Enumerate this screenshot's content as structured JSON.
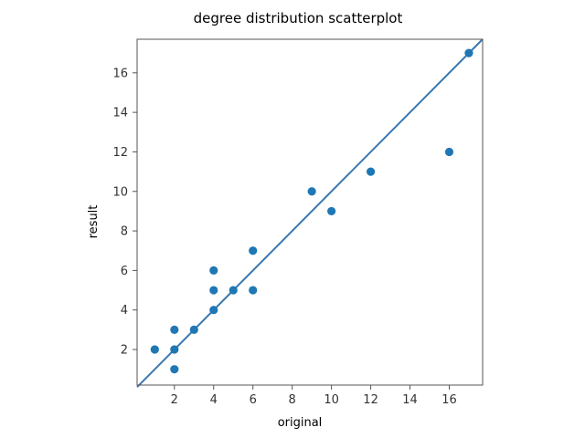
{
  "chart_data": {
    "type": "scatter",
    "title": "degree distribution scatterplot",
    "xlabel": "original",
    "ylabel": "result",
    "xlim": [
      0.1,
      17.7
    ],
    "ylim": [
      0.2,
      17.7
    ],
    "xticks": [
      2,
      4,
      6,
      8,
      10,
      12,
      14,
      16
    ],
    "yticks": [
      2,
      4,
      6,
      8,
      10,
      12,
      14,
      16
    ],
    "grid": false,
    "points": [
      {
        "x": 1,
        "y": 2
      },
      {
        "x": 2,
        "y": 1
      },
      {
        "x": 2,
        "y": 2
      },
      {
        "x": 2,
        "y": 3
      },
      {
        "x": 3,
        "y": 3
      },
      {
        "x": 4,
        "y": 4
      },
      {
        "x": 4,
        "y": 5
      },
      {
        "x": 4,
        "y": 6
      },
      {
        "x": 5,
        "y": 5
      },
      {
        "x": 6,
        "y": 5
      },
      {
        "x": 6,
        "y": 7
      },
      {
        "x": 9,
        "y": 10
      },
      {
        "x": 10,
        "y": 9
      },
      {
        "x": 12,
        "y": 11
      },
      {
        "x": 16,
        "y": 12
      },
      {
        "x": 17,
        "y": 17
      }
    ],
    "reference_line": {
      "type": "identity",
      "from": [
        0.1,
        0.1
      ],
      "to": [
        17.7,
        17.7
      ]
    },
    "colors": {
      "points": "#1f77b4",
      "line": "#3a78b0",
      "axes": "#555555"
    }
  }
}
